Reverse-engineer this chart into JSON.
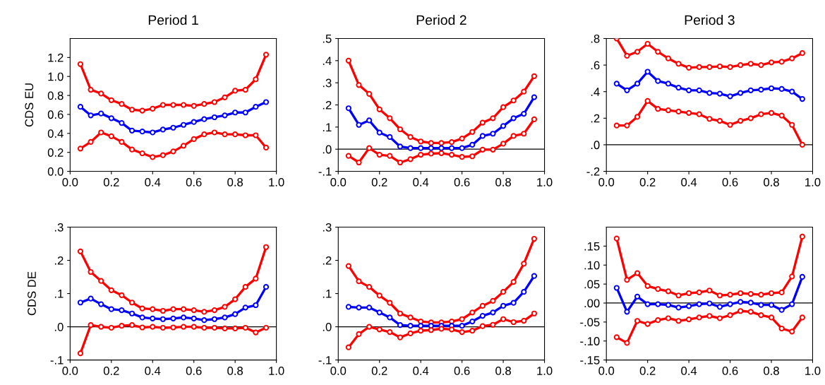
{
  "chart_data": [
    {
      "type": "line",
      "title": "Period 1",
      "ylabel": "CDS EU",
      "marker": "circle",
      "line_style": "solid",
      "x": [
        0.05,
        0.1,
        0.15,
        0.2,
        0.25,
        0.3,
        0.35,
        0.4,
        0.45,
        0.5,
        0.55,
        0.6,
        0.65,
        0.7,
        0.75,
        0.8,
        0.85,
        0.9,
        0.95
      ],
      "xlim": [
        0,
        1
      ],
      "xticks": [
        {
          "value": 0,
          "label": "0.0"
        },
        {
          "value": 0.2,
          "label": "0.2"
        },
        {
          "value": 0.4,
          "label": "0.4"
        },
        {
          "value": 0.6,
          "label": "0.6"
        },
        {
          "value": 0.8,
          "label": "0.8"
        },
        {
          "value": 1,
          "label": "1.0"
        }
      ],
      "ylim": [
        0,
        1.4
      ],
      "yticks": [
        {
          "value": 0,
          "label": "0.0"
        },
        {
          "value": 0.2,
          "label": "0.2"
        },
        {
          "value": 0.4,
          "label": "0.4"
        },
        {
          "value": 0.6,
          "label": "0.6"
        },
        {
          "value": 0.8,
          "label": "0.8"
        },
        {
          "value": 1.0,
          "label": "1.0"
        },
        {
          "value": 1.2,
          "label": "1.2"
        }
      ],
      "series": [
        {
          "color": "#ff0000",
          "values": [
            1.13,
            0.86,
            0.82,
            0.75,
            0.71,
            0.65,
            0.64,
            0.66,
            0.7,
            0.7,
            0.7,
            0.69,
            0.71,
            0.73,
            0.78,
            0.85,
            0.86,
            0.97,
            1.23
          ]
        },
        {
          "color": "#0000ff",
          "values": [
            0.68,
            0.59,
            0.61,
            0.56,
            0.51,
            0.43,
            0.42,
            0.41,
            0.44,
            0.46,
            0.49,
            0.52,
            0.55,
            0.57,
            0.59,
            0.62,
            0.62,
            0.68,
            0.73
          ]
        },
        {
          "color": "#ff0000",
          "values": [
            0.24,
            0.31,
            0.41,
            0.37,
            0.31,
            0.23,
            0.19,
            0.15,
            0.17,
            0.21,
            0.27,
            0.34,
            0.39,
            0.41,
            0.39,
            0.39,
            0.38,
            0.38,
            0.25
          ]
        }
      ]
    },
    {
      "type": "line",
      "title": "Period 2",
      "marker": "circle",
      "line_style": "solid",
      "x": [
        0.05,
        0.1,
        0.15,
        0.2,
        0.25,
        0.3,
        0.35,
        0.4,
        0.45,
        0.5,
        0.55,
        0.6,
        0.65,
        0.7,
        0.75,
        0.8,
        0.85,
        0.9,
        0.95
      ],
      "xlim": [
        0,
        1
      ],
      "xticks": [
        {
          "value": 0,
          "label": "0.0"
        },
        {
          "value": 0.2,
          "label": "0.2"
        },
        {
          "value": 0.4,
          "label": "0.4"
        },
        {
          "value": 0.6,
          "label": "0.6"
        },
        {
          "value": 0.8,
          "label": "0.8"
        },
        {
          "value": 1,
          "label": "1.0"
        }
      ],
      "ylim": [
        -0.1,
        0.5
      ],
      "yticks": [
        {
          "value": -0.1,
          "label": "-.1"
        },
        {
          "value": 0,
          "label": ".0"
        },
        {
          "value": 0.1,
          "label": ".1"
        },
        {
          "value": 0.2,
          "label": ".2"
        },
        {
          "value": 0.3,
          "label": ".3"
        },
        {
          "value": 0.4,
          "label": ".4"
        },
        {
          "value": 0.5,
          "label": ".5"
        }
      ],
      "ref_lines": [
        {
          "axis": "y",
          "value": 0,
          "color": "#000000"
        }
      ],
      "series": [
        {
          "color": "#ff0000",
          "values": [
            0.4,
            0.29,
            0.25,
            0.18,
            0.14,
            0.09,
            0.055,
            0.035,
            0.028,
            0.028,
            0.032,
            0.048,
            0.078,
            0.12,
            0.14,
            0.19,
            0.22,
            0.26,
            0.33
          ]
        },
        {
          "color": "#0000ff",
          "values": [
            0.185,
            0.11,
            0.13,
            0.075,
            0.055,
            0.012,
            0.005,
            0.005,
            0.005,
            0.005,
            0.005,
            0.005,
            0.02,
            0.06,
            0.07,
            0.105,
            0.14,
            0.16,
            0.235
          ]
        },
        {
          "color": "#ff0000",
          "values": [
            -0.03,
            -0.06,
            0.005,
            -0.025,
            -0.03,
            -0.06,
            -0.045,
            -0.025,
            -0.02,
            -0.018,
            -0.025,
            -0.035,
            -0.032,
            -0.002,
            -0.002,
            0.025,
            0.06,
            0.07,
            0.135
          ]
        }
      ]
    },
    {
      "type": "line",
      "title": "Period 3",
      "marker": "circle",
      "line_style": "solid",
      "x": [
        0.05,
        0.1,
        0.15,
        0.2,
        0.25,
        0.3,
        0.35,
        0.4,
        0.45,
        0.5,
        0.55,
        0.6,
        0.65,
        0.7,
        0.75,
        0.8,
        0.85,
        0.9,
        0.95
      ],
      "xlim": [
        0,
        1
      ],
      "xticks": [
        {
          "value": 0,
          "label": "0.0"
        },
        {
          "value": 0.2,
          "label": "0.2"
        },
        {
          "value": 0.4,
          "label": "0.4"
        },
        {
          "value": 0.6,
          "label": "0.6"
        },
        {
          "value": 0.8,
          "label": "0.8"
        },
        {
          "value": 1,
          "label": "1.0"
        }
      ],
      "ylim": [
        -0.2,
        0.8
      ],
      "yticks": [
        {
          "value": -0.2,
          "label": "-.2"
        },
        {
          "value": 0,
          "label": ".0"
        },
        {
          "value": 0.2,
          "label": ".2"
        },
        {
          "value": 0.4,
          "label": ".4"
        },
        {
          "value": 0.6,
          "label": ".6"
        },
        {
          "value": 0.8,
          "label": ".8"
        }
      ],
      "ref_lines": [
        {
          "axis": "y",
          "value": 0,
          "color": "#000000"
        }
      ],
      "series": [
        {
          "color": "#ff0000",
          "values": [
            0.8,
            0.67,
            0.7,
            0.76,
            0.7,
            0.65,
            0.61,
            0.58,
            0.585,
            0.585,
            0.59,
            0.585,
            0.6,
            0.61,
            0.6,
            0.62,
            0.625,
            0.65,
            0.69
          ]
        },
        {
          "color": "#0000ff",
          "values": [
            0.46,
            0.41,
            0.46,
            0.55,
            0.48,
            0.46,
            0.43,
            0.41,
            0.41,
            0.39,
            0.385,
            0.365,
            0.39,
            0.41,
            0.415,
            0.425,
            0.42,
            0.4,
            0.345
          ]
        },
        {
          "color": "#ff0000",
          "values": [
            0.145,
            0.145,
            0.21,
            0.33,
            0.27,
            0.26,
            0.25,
            0.24,
            0.23,
            0.195,
            0.18,
            0.15,
            0.18,
            0.2,
            0.23,
            0.24,
            0.22,
            0.15,
            0.0
          ]
        }
      ]
    },
    {
      "type": "line",
      "ylabel": "CDS DE",
      "marker": "circle",
      "line_style": "solid",
      "x": [
        0.05,
        0.1,
        0.15,
        0.2,
        0.25,
        0.3,
        0.35,
        0.4,
        0.45,
        0.5,
        0.55,
        0.6,
        0.65,
        0.7,
        0.75,
        0.8,
        0.85,
        0.9,
        0.95
      ],
      "xlim": [
        0,
        1
      ],
      "xticks": [
        {
          "value": 0,
          "label": "0.0"
        },
        {
          "value": 0.2,
          "label": "0.2"
        },
        {
          "value": 0.4,
          "label": "0.4"
        },
        {
          "value": 0.6,
          "label": "0.6"
        },
        {
          "value": 0.8,
          "label": "0.8"
        },
        {
          "value": 1,
          "label": "1.0"
        }
      ],
      "ylim": [
        -0.1,
        0.3
      ],
      "yticks": [
        {
          "value": -0.1,
          "label": "-.1"
        },
        {
          "value": 0,
          "label": ".0"
        },
        {
          "value": 0.1,
          "label": ".1"
        },
        {
          "value": 0.2,
          "label": ".2"
        },
        {
          "value": 0.3,
          "label": ".3"
        }
      ],
      "ref_lines": [
        {
          "axis": "y",
          "value": 0,
          "color": "#000000"
        }
      ],
      "series": [
        {
          "color": "#ff0000",
          "values": [
            0.227,
            0.165,
            0.138,
            0.11,
            0.095,
            0.073,
            0.055,
            0.053,
            0.048,
            0.053,
            0.053,
            0.05,
            0.045,
            0.05,
            0.06,
            0.083,
            0.12,
            0.145,
            0.24
          ]
        },
        {
          "color": "#0000ff",
          "values": [
            0.073,
            0.085,
            0.068,
            0.053,
            0.05,
            0.04,
            0.028,
            0.025,
            0.023,
            0.025,
            0.028,
            0.025,
            0.02,
            0.023,
            0.028,
            0.038,
            0.058,
            0.065,
            0.12
          ]
        },
        {
          "color": "#ff0000",
          "values": [
            -0.08,
            0.005,
            0.0,
            -0.003,
            0.003,
            0.005,
            -0.002,
            0.0,
            -0.003,
            -0.002,
            0.0,
            0.0,
            -0.003,
            -0.003,
            -0.005,
            -0.005,
            -0.003,
            -0.017,
            -0.003
          ]
        }
      ]
    },
    {
      "type": "line",
      "marker": "circle",
      "line_style": "solid",
      "x": [
        0.05,
        0.1,
        0.15,
        0.2,
        0.25,
        0.3,
        0.35,
        0.4,
        0.45,
        0.5,
        0.55,
        0.6,
        0.65,
        0.7,
        0.75,
        0.8,
        0.85,
        0.9,
        0.95
      ],
      "xlim": [
        0,
        1
      ],
      "xticks": [
        {
          "value": 0,
          "label": "0.0"
        },
        {
          "value": 0.2,
          "label": "0.2"
        },
        {
          "value": 0.4,
          "label": "0.4"
        },
        {
          "value": 0.6,
          "label": "0.6"
        },
        {
          "value": 0.8,
          "label": "0.8"
        },
        {
          "value": 1,
          "label": "1.0"
        }
      ],
      "ylim": [
        -0.1,
        0.3
      ],
      "yticks": [
        {
          "value": -0.1,
          "label": "-.1"
        },
        {
          "value": 0,
          "label": ".0"
        },
        {
          "value": 0.1,
          "label": ".1"
        },
        {
          "value": 0.2,
          "label": ".2"
        },
        {
          "value": 0.3,
          "label": ".3"
        }
      ],
      "ref_lines": [
        {
          "axis": "y",
          "value": 0,
          "color": "#000000"
        }
      ],
      "series": [
        {
          "color": "#ff0000",
          "values": [
            0.183,
            0.137,
            0.12,
            0.094,
            0.072,
            0.04,
            0.028,
            0.016,
            0.013,
            0.013,
            0.016,
            0.023,
            0.043,
            0.063,
            0.078,
            0.105,
            0.135,
            0.19,
            0.265
          ]
        },
        {
          "color": "#0000ff",
          "values": [
            0.06,
            0.058,
            0.058,
            0.043,
            0.028,
            0.005,
            0.003,
            0.003,
            0.003,
            0.003,
            0.003,
            0.003,
            0.016,
            0.033,
            0.043,
            0.063,
            0.072,
            0.105,
            0.153
          ]
        },
        {
          "color": "#ff0000",
          "values": [
            -0.062,
            -0.022,
            0.0,
            -0.008,
            -0.016,
            -0.032,
            -0.02,
            -0.012,
            -0.01,
            -0.006,
            -0.008,
            -0.016,
            -0.012,
            0.002,
            0.006,
            0.023,
            0.014,
            0.018,
            0.04
          ]
        }
      ]
    },
    {
      "type": "line",
      "marker": "circle",
      "line_style": "solid",
      "x": [
        0.05,
        0.1,
        0.15,
        0.2,
        0.25,
        0.3,
        0.35,
        0.4,
        0.45,
        0.5,
        0.55,
        0.6,
        0.65,
        0.7,
        0.75,
        0.8,
        0.85,
        0.9,
        0.95
      ],
      "xlim": [
        0,
        1
      ],
      "xticks": [
        {
          "value": 0,
          "label": "0.0"
        },
        {
          "value": 0.2,
          "label": "0.2"
        },
        {
          "value": 0.4,
          "label": "0.4"
        },
        {
          "value": 0.6,
          "label": "0.6"
        },
        {
          "value": 0.8,
          "label": "0.8"
        },
        {
          "value": 1,
          "label": "1.0"
        }
      ],
      "ylim": [
        -0.15,
        0.2
      ],
      "yticks": [
        {
          "value": -0.15,
          "label": "-.15"
        },
        {
          "value": -0.1,
          "label": "-.10"
        },
        {
          "value": -0.05,
          "label": "-.05"
        },
        {
          "value": 0,
          "label": ".00"
        },
        {
          "value": 0.05,
          "label": ".05"
        },
        {
          "value": 0.1,
          "label": ".10"
        },
        {
          "value": 0.15,
          "label": ".15"
        }
      ],
      "ref_lines": [
        {
          "axis": "y",
          "value": 0,
          "color": "#000000"
        }
      ],
      "series": [
        {
          "color": "#ff0000",
          "values": [
            0.17,
            0.061,
            0.079,
            0.045,
            0.037,
            0.031,
            0.02,
            0.026,
            0.028,
            0.033,
            0.02,
            0.022,
            0.026,
            0.024,
            0.022,
            0.026,
            0.028,
            0.07,
            0.175
          ]
        },
        {
          "color": "#0000ff",
          "values": [
            0.04,
            -0.023,
            0.017,
            -0.003,
            -0.003,
            -0.005,
            -0.012,
            -0.008,
            -0.003,
            -0.001,
            -0.01,
            -0.003,
            0.003,
            0.001,
            -0.005,
            -0.005,
            -0.018,
            -0.003,
            0.069
          ]
        },
        {
          "color": "#ff0000",
          "values": [
            -0.09,
            -0.105,
            -0.047,
            -0.055,
            -0.045,
            -0.04,
            -0.047,
            -0.043,
            -0.038,
            -0.034,
            -0.04,
            -0.032,
            -0.021,
            -0.023,
            -0.032,
            -0.038,
            -0.067,
            -0.075,
            -0.038
          ]
        }
      ]
    }
  ]
}
